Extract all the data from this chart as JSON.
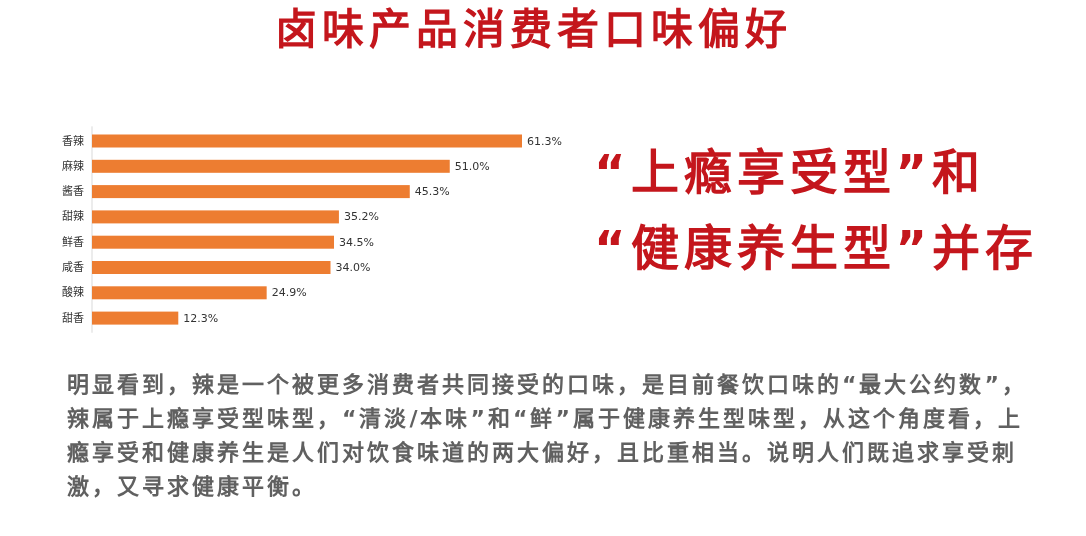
{
  "chart_data": {
    "type": "bar",
    "orientation": "horizontal",
    "title": "卤味产品消费者口味偏好",
    "subtitle": "“上瘾享受型”和“健康养生型”并存",
    "categories": [
      "香辣",
      "麻辣",
      "酱香",
      "甜辣",
      "鲜香",
      "咸香",
      "酸辣",
      "甜香"
    ],
    "values": [
      61.3,
      51.0,
      45.3,
      35.2,
      34.5,
      34.0,
      24.9,
      12.3
    ],
    "value_labels": [
      "61.3%",
      "51.0%",
      "45.3%",
      "35.2%",
      "34.5%",
      "34.0%",
      "24.9%",
      "12.3%"
    ],
    "color": "#ed7d31",
    "annotations": [
      "明显看到，辣是一个被更多消费者共同接受的口味，是目前餐饮口味的“最大公约数”，辣属于上瘾享受型味型，“清淡/本味”和“鲜”属于健康养生型味型，从这个角度看，上瘾享受和健康养生是人们对饮食味道的两大偏好，且比重相当。说明人们既追求享受刺激，又寻求健康平衡。"
    ]
  }
}
